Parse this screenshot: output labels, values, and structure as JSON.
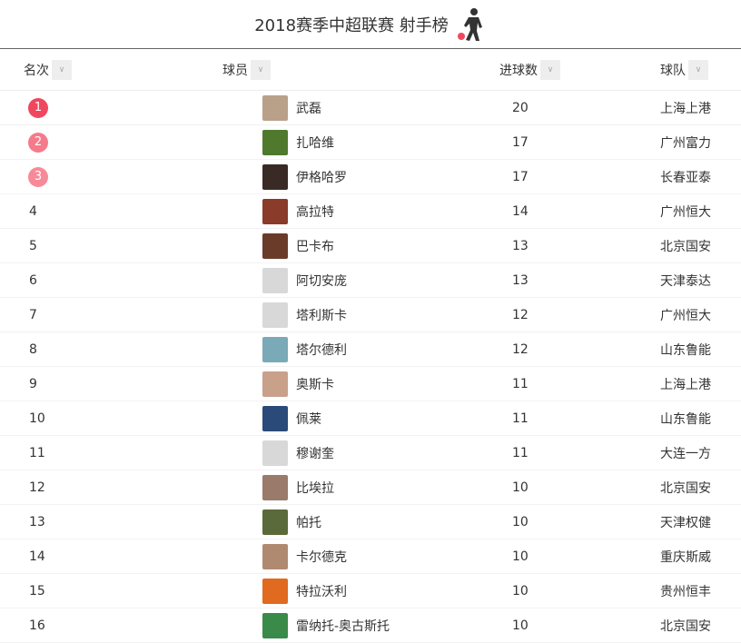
{
  "title": "2018赛季中超联赛 射手榜",
  "headers": {
    "rank": "名次",
    "player": "球员",
    "goals": "进球数",
    "team": "球队"
  },
  "colors": {
    "rank1": "#f0475f",
    "rank2": "#f57a8a",
    "rank3": "#f78a98",
    "ball": "#f0475f"
  },
  "rows": [
    {
      "rank": "1",
      "name": "武磊",
      "goals": "20",
      "team": "上海上港",
      "avatar": "#b9a089"
    },
    {
      "rank": "2",
      "name": "扎哈维",
      "goals": "17",
      "team": "广州富力",
      "avatar": "#4f7a2e"
    },
    {
      "rank": "3",
      "name": "伊格哈罗",
      "goals": "17",
      "team": "长春亚泰",
      "avatar": "#3a2a25"
    },
    {
      "rank": "4",
      "name": "高拉特",
      "goals": "14",
      "team": "广州恒大",
      "avatar": "#8a3b2a"
    },
    {
      "rank": "5",
      "name": "巴卡布",
      "goals": "13",
      "team": "北京国安",
      "avatar": "#6b3b2a"
    },
    {
      "rank": "6",
      "name": "阿切安庞",
      "goals": "13",
      "team": "天津泰达",
      "avatar": "#d8d8d8"
    },
    {
      "rank": "7",
      "name": "塔利斯卡",
      "goals": "12",
      "team": "广州恒大",
      "avatar": "#d8d8d8"
    },
    {
      "rank": "8",
      "name": "塔尔德利",
      "goals": "12",
      "team": "山东鲁能",
      "avatar": "#7aa9b8"
    },
    {
      "rank": "9",
      "name": "奥斯卡",
      "goals": "11",
      "team": "上海上港",
      "avatar": "#c9a08a"
    },
    {
      "rank": "10",
      "name": "佩莱",
      "goals": "11",
      "team": "山东鲁能",
      "avatar": "#2a4a7a"
    },
    {
      "rank": "11",
      "name": "穆谢奎",
      "goals": "11",
      "team": "大连一方",
      "avatar": "#d8d8d8"
    },
    {
      "rank": "12",
      "name": "比埃拉",
      "goals": "10",
      "team": "北京国安",
      "avatar": "#9a7a6a"
    },
    {
      "rank": "13",
      "name": "帕托",
      "goals": "10",
      "team": "天津权健",
      "avatar": "#5a6a3a"
    },
    {
      "rank": "14",
      "name": "卡尔德克",
      "goals": "10",
      "team": "重庆斯威",
      "avatar": "#b08a70"
    },
    {
      "rank": "15",
      "name": "特拉沃利",
      "goals": "10",
      "team": "贵州恒丰",
      "avatar": "#e06a20"
    },
    {
      "rank": "16",
      "name": "雷纳托-奥古斯托",
      "goals": "10",
      "team": "北京国安",
      "avatar": "#3a8a4a"
    }
  ]
}
